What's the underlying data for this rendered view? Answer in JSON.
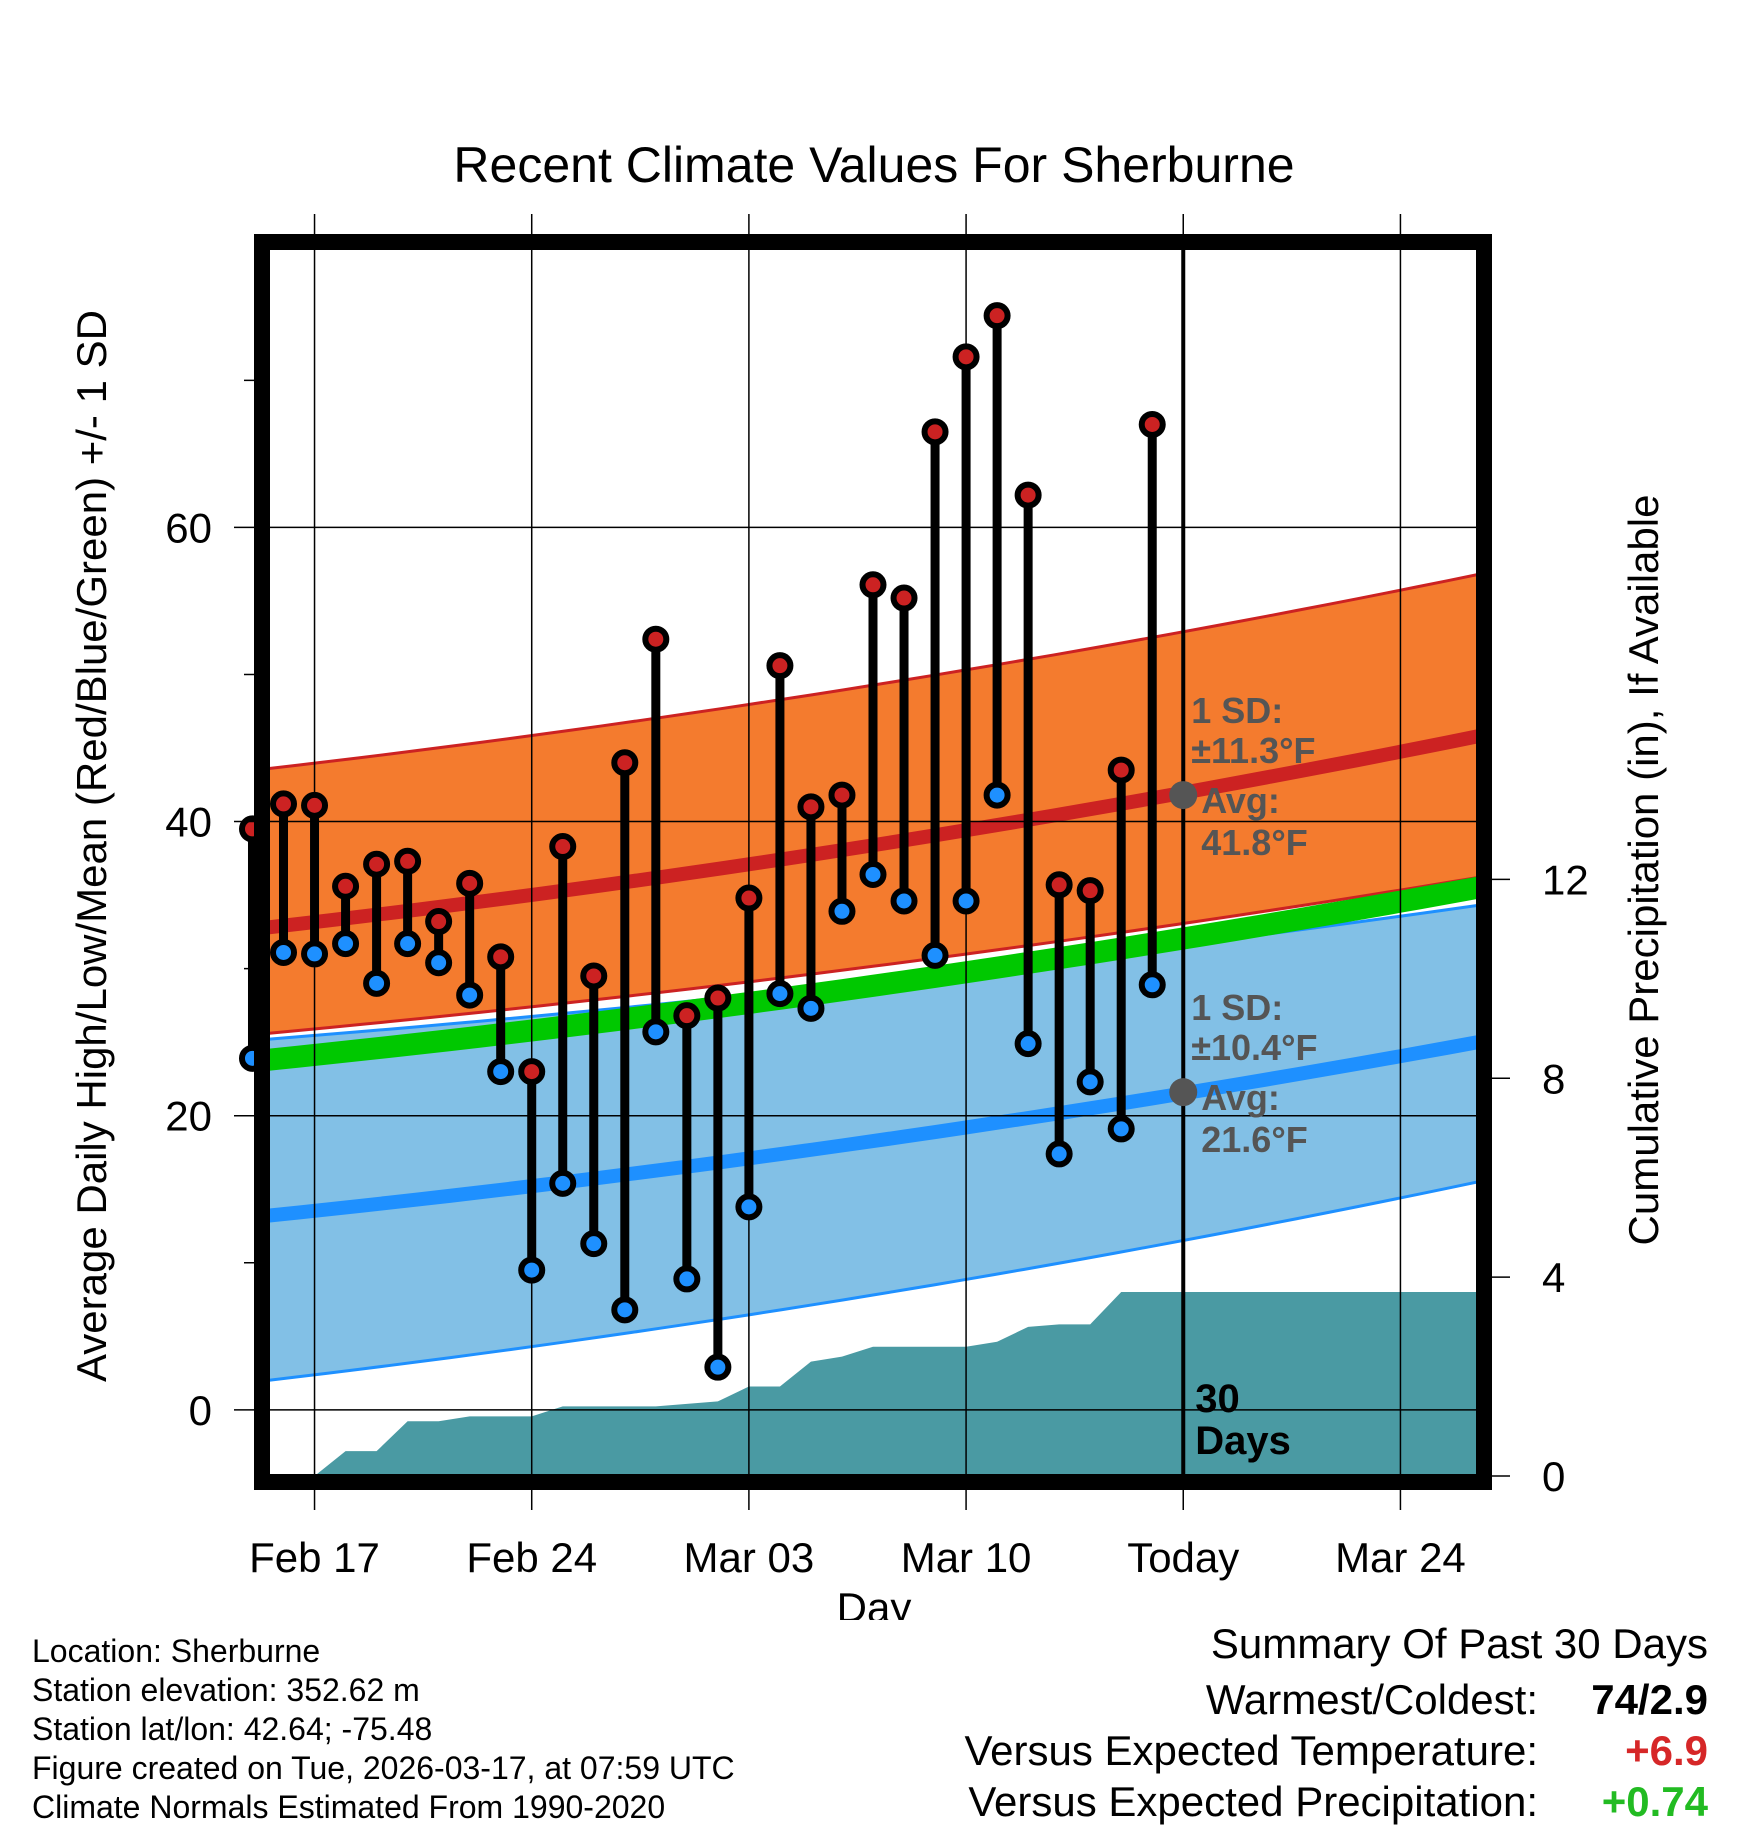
{
  "colors": {
    "high": "#cc2222",
    "low": "#1e90ff",
    "mean": "#00c800",
    "orange_band": "#f47b2e",
    "blue_band": "#82c0e6",
    "precip": "#4a9aa3",
    "dark_red": "#8b1010",
    "warm": "#d62728",
    "wet": "#22bb22"
  },
  "chart_data": {
    "type": "line",
    "title": "Recent Climate Values For Sherburne",
    "xlabel": "Day",
    "ylabel": "Average Daily High/Low/Mean (Red/Blue/Green) +/- 1 SD",
    "y2label": "Cumulative Precipitation (in), If Available",
    "ylim": [
      -4.5,
      79
    ],
    "y2lim": [
      0,
      24.7
    ],
    "x_range_days": [
      -29.5,
      9.5
    ],
    "yticks": [
      0,
      20,
      40,
      60
    ],
    "y_minor_ticks": [
      10,
      30,
      50,
      70
    ],
    "y2ticks": [
      0,
      4,
      8,
      12
    ],
    "xtick_days": [
      -28,
      -21,
      -14,
      -7,
      0,
      7
    ],
    "xtick_labels": [
      "Feb 17",
      "Feb 24",
      "Mar 03",
      "Mar 10",
      "Today",
      "Mar 24"
    ],
    "today_day": 0,
    "days_label": [
      "30",
      "Days"
    ],
    "observed": {
      "days": [
        -30,
        -29,
        -28,
        -27,
        -26,
        -25,
        -24,
        -23,
        -22,
        -21,
        -20,
        -19,
        -18,
        -17,
        -16,
        -15,
        -14,
        -13,
        -12,
        -11,
        -10,
        -9,
        -8,
        -7,
        -6,
        -5,
        -4,
        -3,
        -2,
        -1
      ],
      "high": [
        39.5,
        41.2,
        41.1,
        35.6,
        37.1,
        37.3,
        33.2,
        35.8,
        30.8,
        23,
        38.3,
        29.5,
        44,
        52.4,
        26.8,
        28,
        34.8,
        50.6,
        41,
        41.8,
        56.1,
        55.2,
        66.5,
        71.6,
        74.4,
        62.2,
        35.7,
        35.3,
        43.5,
        67
      ],
      "low": [
        23.9,
        31.1,
        31,
        31.7,
        29,
        31.7,
        30.4,
        28.2,
        23,
        9.5,
        15.4,
        11.3,
        6.8,
        25.7,
        8.9,
        2.9,
        13.8,
        28.3,
        27.3,
        33.9,
        36.4,
        34.6,
        30.9,
        34.6,
        41.8,
        24.9,
        17.4,
        22.3,
        19.1,
        28.9
      ]
    },
    "normals": {
      "days": [
        -29.5,
        9.5
      ],
      "avg_high": [
        32.8,
        45.8
      ],
      "high_upper": [
        43.6,
        56.8
      ],
      "high_lower": [
        25.6,
        36.2
      ],
      "avg_low": [
        13.2,
        25
      ],
      "low_upper": [
        25.2,
        34.3
      ],
      "low_lower": [
        2,
        15.5
      ],
      "avg_mean": [
        23.8,
        35.5
      ]
    },
    "today_annotations": {
      "high_sd_label": "1 SD:",
      "high_sd_value": "±11.3°F",
      "high_avg_label": "Avg:",
      "high_avg_value": "41.8°F",
      "low_sd_label": "1 SD:",
      "low_sd_value": "±10.4°F",
      "low_avg_label": "Avg:",
      "low_avg_value": "21.6°F",
      "high_avg": 41.8,
      "low_avg": 21.6
    },
    "precip": {
      "days": [
        -27,
        -26,
        -25,
        -24,
        -23,
        -22,
        -21,
        -20,
        -19,
        -18,
        -17,
        -16,
        -15,
        -14,
        -13,
        -12,
        -11,
        -10,
        -9,
        -8,
        -7,
        -6,
        -5,
        -4,
        -3,
        -2,
        -1,
        9.5
      ],
      "values": [
        0.5,
        0.5,
        1.1,
        1.1,
        1.2,
        1.2,
        1.2,
        1.4,
        1.4,
        1.4,
        1.4,
        1.45,
        1.5,
        1.8,
        1.8,
        2.3,
        2.4,
        2.6,
        2.6,
        2.6,
        2.6,
        2.7,
        3.0,
        3.05,
        3.05,
        3.7,
        3.7,
        3.7
      ]
    }
  },
  "footer": {
    "location": "Location: Sherburne",
    "elevation": "Station elevation: 352.62 m",
    "latlon": "Station lat/lon: 42.64; -75.48",
    "created": "Figure created on Tue, 2026-03-17, at 07:59 UTC",
    "normals": "Climate Normals Estimated From 1990-2020"
  },
  "summary": {
    "title": "Summary Of Past 30 Days",
    "warmest_label": "Warmest/Coldest:",
    "warmest_value": "74/2.9",
    "temp_label": "Versus Expected Temperature:",
    "temp_value": "+6.9",
    "precip_label": "Versus Expected Precipitation:",
    "precip_value": "+0.74"
  }
}
